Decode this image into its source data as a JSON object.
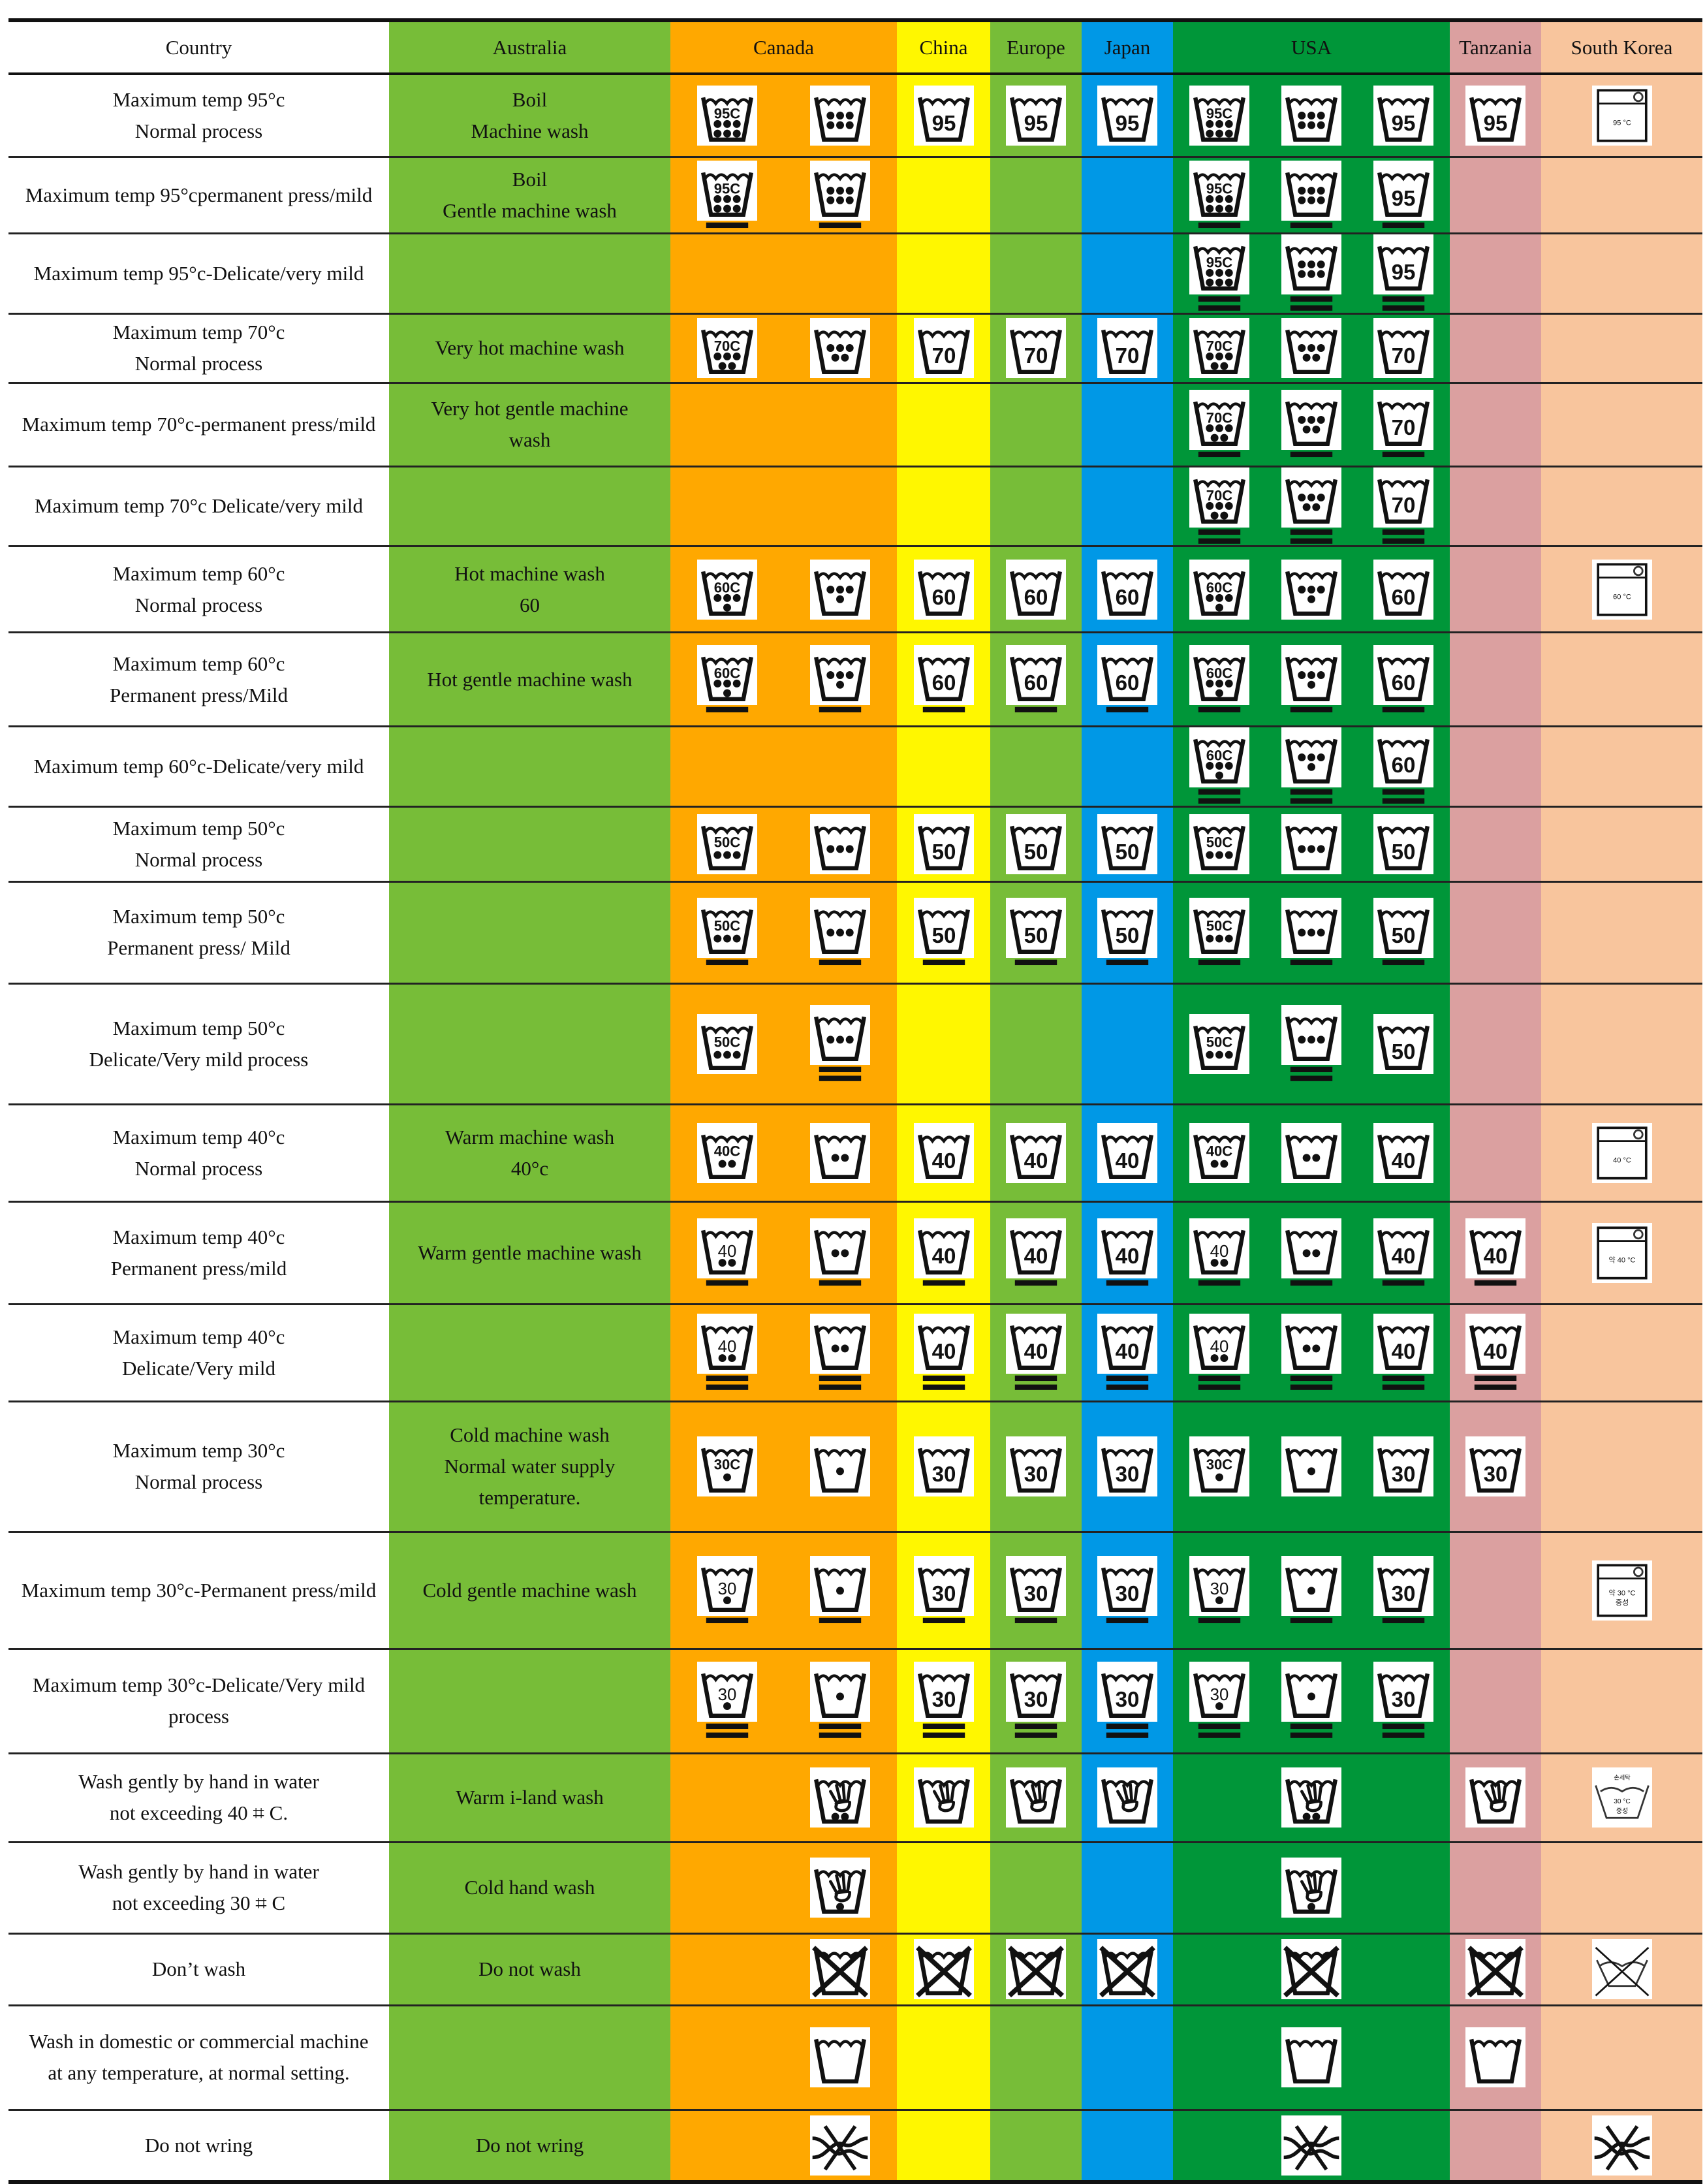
{
  "columns": [
    {
      "name": "Country",
      "color": "#ffffff"
    },
    {
      "name": "Australia",
      "color": "#77bd38"
    },
    {
      "name": "Canada",
      "color": "#ffa800"
    },
    {
      "name": "China",
      "color": "#fff700"
    },
    {
      "name": "Europe",
      "color": "#77bd38"
    },
    {
      "name": "Japan",
      "color": "#0098e6"
    },
    {
      "name": "USA",
      "color": "#009639"
    },
    {
      "name": "Tanzania",
      "color": "#dba0a0"
    },
    {
      "name": "South Korea",
      "color": "#f8c59d"
    }
  ],
  "rows": [
    {
      "criterion": "Maximum temp 95°c\nNormal process",
      "australia": "Boil\nMachine wash",
      "canada": [
        {
          "t": "numc",
          "v": "95C",
          "d": 6
        },
        {
          "t": "dots",
          "d": 6
        }
      ],
      "china": [
        {
          "t": "num",
          "v": "95"
        }
      ],
      "europe": [
        {
          "t": "num",
          "v": "95"
        }
      ],
      "japan": [
        {
          "t": "num",
          "v": "95"
        }
      ],
      "usa": [
        {
          "t": "numc",
          "v": "95C",
          "d": 6
        },
        {
          "t": "dots",
          "d": 6
        },
        {
          "t": "num",
          "v": "95"
        }
      ],
      "tanzania": [
        {
          "t": "num",
          "v": "95"
        }
      ],
      "korea": [
        {
          "t": "box",
          "v": "95 °C"
        }
      ]
    },
    {
      "criterion": "Maximum temp 95°cpermanent press/mild",
      "australia": "Boil\nGentle machine wash",
      "canada": [
        {
          "t": "numc",
          "v": "95C",
          "d": 6,
          "b": 1
        },
        {
          "t": "dots",
          "d": 6,
          "b": 1
        }
      ],
      "china": [],
      "europe": [],
      "japan": [],
      "usa": [
        {
          "t": "numc",
          "v": "95C",
          "d": 6,
          "b": 1
        },
        {
          "t": "dots",
          "d": 6,
          "b": 1
        },
        {
          "t": "num",
          "v": "95",
          "b": 1
        }
      ],
      "tanzania": [],
      "korea": []
    },
    {
      "criterion": "Maximum temp 95°c-Delicate/very mild",
      "australia": "",
      "canada": [],
      "china": [],
      "europe": [],
      "japan": [],
      "usa": [
        {
          "t": "numc",
          "v": "95C",
          "d": 6,
          "b": 2
        },
        {
          "t": "dots",
          "d": 6,
          "b": 2
        },
        {
          "t": "num",
          "v": "95",
          "b": 2
        }
      ],
      "tanzania": [],
      "korea": []
    },
    {
      "criterion": "Maximum temp 70°c\nNormal process",
      "australia": "Very hot    machine wash",
      "canada": [
        {
          "t": "numc",
          "v": "70C",
          "d": 5
        },
        {
          "t": "dots",
          "d": 5
        }
      ],
      "china": [
        {
          "t": "num",
          "v": "70"
        }
      ],
      "europe": [
        {
          "t": "num",
          "v": "70"
        }
      ],
      "japan": [
        {
          "t": "num",
          "v": "70"
        }
      ],
      "usa": [
        {
          "t": "numc",
          "v": "70C",
          "d": 5
        },
        {
          "t": "dots",
          "d": 5
        },
        {
          "t": "num",
          "v": "70"
        }
      ],
      "tanzania": [],
      "korea": []
    },
    {
      "criterion": "Maximum temp 70°c-permanent press/mild",
      "australia": "Very hot    gentle machine\nwash",
      "canada": [],
      "china": [],
      "europe": [],
      "japan": [],
      "usa": [
        {
          "t": "numc",
          "v": "70C",
          "d": 5,
          "b": 1
        },
        {
          "t": "dots",
          "d": 5,
          "b": 1
        },
        {
          "t": "num",
          "v": "70",
          "b": 1
        }
      ],
      "tanzania": [],
      "korea": []
    },
    {
      "criterion": "Maximum temp 70°c Delicate/very mild",
      "australia": "",
      "canada": [],
      "china": [],
      "europe": [],
      "japan": [],
      "usa": [
        {
          "t": "numc",
          "v": "70C",
          "d": 5,
          "b": 2
        },
        {
          "t": "dots",
          "d": 5,
          "b": 2
        },
        {
          "t": "num",
          "v": "70",
          "b": 2
        }
      ],
      "tanzania": [],
      "korea": []
    },
    {
      "criterion": "Maximum temp 60°c\nNormal process",
      "australia": "Hot machine wash\n60",
      "canada": [
        {
          "t": "numc",
          "v": "60C",
          "d": 4
        },
        {
          "t": "dots",
          "d": 4
        }
      ],
      "china": [
        {
          "t": "num",
          "v": "60"
        }
      ],
      "europe": [
        {
          "t": "num",
          "v": "60"
        }
      ],
      "japan": [
        {
          "t": "num",
          "v": "60"
        }
      ],
      "usa": [
        {
          "t": "numc",
          "v": "60C",
          "d": 4
        },
        {
          "t": "dots",
          "d": 4
        },
        {
          "t": "num",
          "v": "60"
        }
      ],
      "tanzania": [],
      "korea": [
        {
          "t": "box",
          "v": "60 °C"
        }
      ]
    },
    {
      "criterion": "Maximum temp 60°c\nPermanent press/Mild",
      "australia": "Hot gentle machine wash\n ",
      "canada": [
        {
          "t": "numc",
          "v": "60C",
          "d": 4,
          "b": 1
        },
        {
          "t": "dots",
          "d": 4,
          "b": 1
        }
      ],
      "china": [
        {
          "t": "num",
          "v": "60",
          "b": 1
        }
      ],
      "europe": [
        {
          "t": "num",
          "v": "60",
          "b": 1
        }
      ],
      "japan": [
        {
          "t": "num",
          "v": "60",
          "b": 1
        }
      ],
      "usa": [
        {
          "t": "numc",
          "v": "60C",
          "d": 4,
          "b": 1
        },
        {
          "t": "dots",
          "d": 4,
          "b": 1
        },
        {
          "t": "num",
          "v": "60",
          "b": 1
        }
      ],
      "tanzania": [],
      "korea": []
    },
    {
      "criterion": "Maximum temp 60°c-Delicate/very mild",
      "australia": "",
      "canada": [],
      "china": [],
      "europe": [],
      "japan": [],
      "usa": [
        {
          "t": "numc",
          "v": "60C",
          "d": 4,
          "b": 2
        },
        {
          "t": "dots",
          "d": 4,
          "b": 2
        },
        {
          "t": "num",
          "v": "60",
          "b": 2
        }
      ],
      "tanzania": [],
      "korea": []
    },
    {
      "criterion": "Maximum temp 50°c\nNormal process",
      "australia": "",
      "canada": [
        {
          "t": "numc",
          "v": "50C",
          "d": 3
        },
        {
          "t": "dots",
          "d": 3
        }
      ],
      "china": [
        {
          "t": "num",
          "v": "50"
        }
      ],
      "europe": [
        {
          "t": "num",
          "v": "50"
        }
      ],
      "japan": [
        {
          "t": "num",
          "v": "50"
        }
      ],
      "usa": [
        {
          "t": "numc",
          "v": "50C",
          "d": 3
        },
        {
          "t": "dots",
          "d": 3
        },
        {
          "t": "num",
          "v": "50"
        }
      ],
      "tanzania": [],
      "korea": []
    },
    {
      "criterion": "Maximum temp 50°c\nPermanent press/ Mild",
      "australia": "",
      "canada": [
        {
          "t": "numc",
          "v": "50C",
          "d": 3,
          "b": 1
        },
        {
          "t": "dots",
          "d": 3,
          "b": 1
        }
      ],
      "china": [
        {
          "t": "num",
          "v": "50",
          "b": 1
        }
      ],
      "europe": [
        {
          "t": "num",
          "v": "50",
          "b": 1
        }
      ],
      "japan": [
        {
          "t": "num",
          "v": "50",
          "b": 1
        }
      ],
      "usa": [
        {
          "t": "numc",
          "v": "50C",
          "d": 3,
          "b": 1
        },
        {
          "t": "dots",
          "d": 3,
          "b": 1
        },
        {
          "t": "num",
          "v": "50",
          "b": 1
        }
      ],
      "tanzania": [],
      "korea": []
    },
    {
      "criterion": "Maximum temp 50°c\nDelicate/Very mild process",
      "australia": "",
      "canada": [
        {
          "t": "numc",
          "v": "50C",
          "d": 3
        },
        {
          "t": "dots",
          "d": 3,
          "b": 2
        }
      ],
      "china": [],
      "europe": [],
      "japan": [],
      "usa": [
        {
          "t": "numc",
          "v": "50C",
          "d": 3
        },
        {
          "t": "dots",
          "d": 3,
          "b": 2
        },
        {
          "t": "num",
          "v": "50"
        }
      ],
      "tanzania": [],
      "korea": []
    },
    {
      "criterion": "Maximum temp 40°c\nNormal process",
      "australia": "Warm machine wash\n40°c",
      "canada": [
        {
          "t": "numc",
          "v": "40C",
          "d": 2
        },
        {
          "t": "dots",
          "d": 2
        }
      ],
      "china": [
        {
          "t": "num",
          "v": "40"
        }
      ],
      "europe": [
        {
          "t": "num",
          "v": "40"
        }
      ],
      "japan": [
        {
          "t": "num",
          "v": "40"
        }
      ],
      "usa": [
        {
          "t": "numc",
          "v": "40C",
          "d": 2
        },
        {
          "t": "dots",
          "d": 2
        },
        {
          "t": "num",
          "v": "40"
        }
      ],
      "tanzania": [],
      "korea": [
        {
          "t": "box",
          "v": "40 °C"
        }
      ]
    },
    {
      "criterion": "Maximum temp 40°c\nPermanent press/mild",
      "australia": "Warm gentle machine wash\n ",
      "canada": [
        {
          "t": "numd",
          "v": "40",
          "d": 2,
          "b": 1
        },
        {
          "t": "dots",
          "d": 2,
          "b": 1
        }
      ],
      "china": [
        {
          "t": "num",
          "v": "40",
          "b": 1
        }
      ],
      "europe": [
        {
          "t": "num",
          "v": "40",
          "b": 1
        }
      ],
      "japan": [
        {
          "t": "num",
          "v": "40",
          "b": 1
        }
      ],
      "usa": [
        {
          "t": "numd",
          "v": "40",
          "d": 2,
          "b": 1
        },
        {
          "t": "dots",
          "d": 2,
          "b": 1
        },
        {
          "t": "num",
          "v": "40",
          "b": 1
        }
      ],
      "tanzania": [
        {
          "t": "num",
          "v": "40",
          "b": 1
        }
      ],
      "korea": [
        {
          "t": "box",
          "v": "약 40 °C"
        }
      ]
    },
    {
      "criterion": "Maximum temp 40°c\nDelicate/Very mild",
      "australia": "",
      "canada": [
        {
          "t": "numd",
          "v": "40",
          "d": 2,
          "b": 2
        },
        {
          "t": "dots",
          "d": 2,
          "b": 2
        }
      ],
      "china": [
        {
          "t": "num",
          "v": "40",
          "b": 2
        }
      ],
      "europe": [
        {
          "t": "num",
          "v": "40",
          "b": 2
        }
      ],
      "japan": [
        {
          "t": "num",
          "v": "40",
          "b": 2
        }
      ],
      "usa": [
        {
          "t": "numd",
          "v": "40",
          "d": 2,
          "b": 2
        },
        {
          "t": "dots",
          "d": 2,
          "b": 2
        },
        {
          "t": "num",
          "v": "40",
          "b": 2
        }
      ],
      "tanzania": [
        {
          "t": "num",
          "v": "40",
          "b": 2
        }
      ],
      "korea": []
    },
    {
      "criterion": "Maximum temp 30°c\nNormal process\n ",
      "australia": "Cold machine wash\nNormal water supply\ntemperature.",
      "canada": [
        {
          "t": "numc",
          "v": "30C",
          "d": 1
        },
        {
          "t": "dots",
          "d": 1
        }
      ],
      "china": [
        {
          "t": "num",
          "v": "30"
        }
      ],
      "europe": [
        {
          "t": "num",
          "v": "30"
        }
      ],
      "japan": [
        {
          "t": "num",
          "v": "30"
        }
      ],
      "usa": [
        {
          "t": "numc",
          "v": "30C",
          "d": 1
        },
        {
          "t": "dots",
          "d": 1
        },
        {
          "t": "num",
          "v": "30"
        }
      ],
      "tanzania": [
        {
          "t": "num",
          "v": "30"
        }
      ],
      "korea": []
    },
    {
      "criterion": "Maximum temp 30°c-Permanent press/mild",
      "australia": "Cold gentle machine wash",
      "canada": [
        {
          "t": "numd",
          "v": "30",
          "d": 1,
          "b": 1
        },
        {
          "t": "dots",
          "d": 1,
          "b": 1
        }
      ],
      "china": [
        {
          "t": "num",
          "v": "30",
          "b": 1
        }
      ],
      "europe": [
        {
          "t": "num",
          "v": "30",
          "b": 1
        }
      ],
      "japan": [
        {
          "t": "num",
          "v": "30",
          "b": 1
        }
      ],
      "usa": [
        {
          "t": "numd",
          "v": "30",
          "d": 1,
          "b": 1
        },
        {
          "t": "dots",
          "d": 1,
          "b": 1
        },
        {
          "t": "num",
          "v": "30",
          "b": 1
        }
      ],
      "tanzania": [],
      "korea": [
        {
          "t": "box",
          "v": "약 30 °C",
          "v2": "중성"
        }
      ]
    },
    {
      "criterion": "Maximum temp 30°c-Delicate/Very mild\nprocess",
      "australia": "",
      "canada": [
        {
          "t": "numd",
          "v": "30",
          "d": 1,
          "b": 2
        },
        {
          "t": "dots",
          "d": 1,
          "b": 2
        }
      ],
      "china": [
        {
          "t": "num",
          "v": "30",
          "b": 2
        }
      ],
      "europe": [
        {
          "t": "num",
          "v": "30",
          "b": 2
        }
      ],
      "japan": [
        {
          "t": "num",
          "v": "30",
          "b": 2
        }
      ],
      "usa": [
        {
          "t": "numd",
          "v": "30",
          "d": 1,
          "b": 2
        },
        {
          "t": "dots",
          "d": 1,
          "b": 2
        },
        {
          "t": "num",
          "v": "30",
          "b": 2
        }
      ],
      "tanzania": [],
      "korea": []
    },
    {
      "criterion": "Wash gently by hand in water\nnot exceeding 40 ⌗ C.",
      "australia": "Warm i-land wash",
      "canada": [
        null,
        {
          "t": "hand",
          "d": 2
        }
      ],
      "china": [
        {
          "t": "hand"
        }
      ],
      "europe": [
        {
          "t": "hand"
        }
      ],
      "japan": [
        {
          "t": "hand"
        }
      ],
      "usa": [
        null,
        {
          "t": "hand",
          "d": 2
        },
        null
      ],
      "tanzania": [
        {
          "t": "hand"
        }
      ],
      "korea": [
        {
          "t": "khand",
          "v0": "손세탁",
          "v": "30 °C",
          "v2": "중성"
        }
      ]
    },
    {
      "criterion": "Wash gently by hand in water\nnot exceeding 30 ⌗ C",
      "australia": "Cold hand wash",
      "canada": [
        null,
        {
          "t": "hand",
          "d": 1
        }
      ],
      "china": [],
      "europe": [],
      "japan": [],
      "usa": [
        null,
        {
          "t": "hand",
          "d": 1
        },
        null
      ],
      "tanzania": [],
      "korea": []
    },
    {
      "criterion": "Don’t wash",
      "australia": "Do not wash",
      "canada": [
        null,
        {
          "t": "cross"
        }
      ],
      "china": [
        {
          "t": "cross"
        }
      ],
      "europe": [
        {
          "t": "cross"
        }
      ],
      "japan": [
        {
          "t": "cross"
        }
      ],
      "usa": [
        null,
        {
          "t": "cross"
        },
        null
      ],
      "tanzania": [
        {
          "t": "cross"
        }
      ],
      "korea": [
        {
          "t": "kcross"
        }
      ]
    },
    {
      "criterion": "Wash in domestic or commercial machine\nat any temperature, at normal setting.",
      "australia": "",
      "canada": [
        null,
        {
          "t": "plain"
        }
      ],
      "china": [],
      "europe": [],
      "japan": [],
      "usa": [
        null,
        {
          "t": "plain"
        },
        null
      ],
      "tanzania": [
        {
          "t": "plain"
        }
      ],
      "korea": []
    },
    {
      "criterion": "Do not wring",
      "australia": "Do not wring",
      "canada": [
        null,
        {
          "t": "wring"
        }
      ],
      "china": [],
      "europe": [],
      "japan": [],
      "usa": [
        null,
        {
          "t": "wring"
        },
        null
      ],
      "tanzania": [],
      "korea": [
        {
          "t": "wring"
        }
      ]
    }
  ]
}
